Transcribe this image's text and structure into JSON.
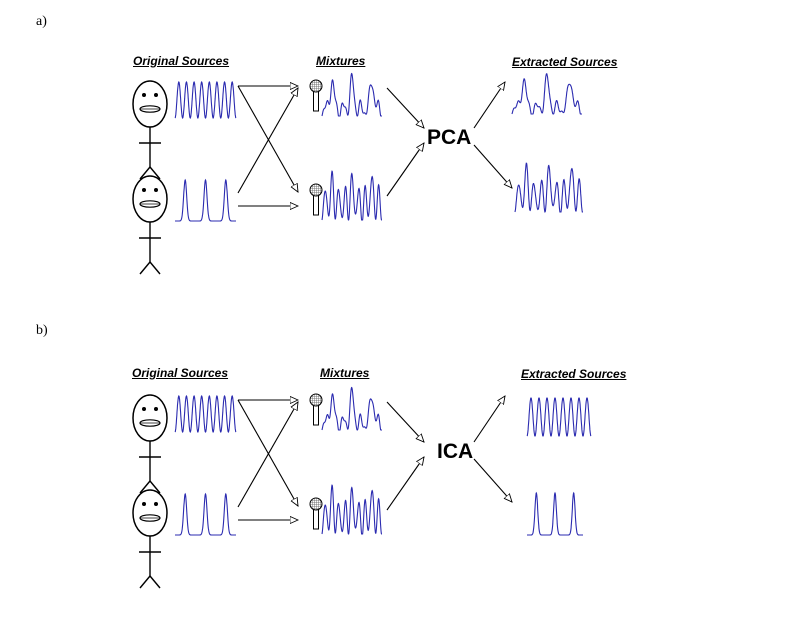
{
  "panels": [
    {
      "label": "a)",
      "headers": {
        "original": "Original Sources",
        "mixtures": "Mixtures",
        "extracted": "Extracted Sources"
      },
      "method": "PCA"
    },
    {
      "label": "b)",
      "headers": {
        "original": "Original Sources",
        "mixtures": "Mixtures",
        "extracted": "Extracted Sources"
      },
      "method": "ICA"
    }
  ],
  "colors": {
    "signal": "#2b2bb0",
    "ink": "#000000",
    "microphone": "#7a7a7a"
  }
}
